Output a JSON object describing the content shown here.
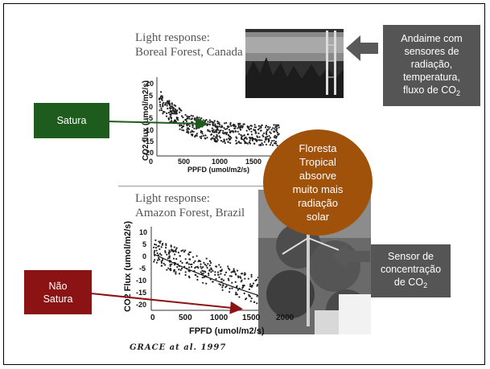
{
  "top_panel": {
    "title_line1": "Light response:",
    "title_line2": "Boreal Forest, Canada",
    "y_axis_label": "CO2 flux (umol/m2/s)",
    "x_axis_label": "PPFD (umol/m2/s)",
    "y_ticks": [
      "10",
      "5",
      "0",
      "-5",
      "-10",
      "-15",
      "-20"
    ],
    "x_ticks": [
      "0",
      "500",
      "1000",
      "1500"
    ]
  },
  "bottom_panel": {
    "title_line1": "Light response:",
    "title_line2": "Amazon Forest, Brazil",
    "y_axis_label": "CO2 Flux (umol/m2/s)",
    "x_axis_label": "FPFD (umol/m2/s)",
    "y_ticks": [
      "10",
      "5",
      "0",
      "-5",
      "-10",
      "-15",
      "-20"
    ],
    "x_ticks": [
      "0",
      "500",
      "1000",
      "1500",
      "2000"
    ]
  },
  "citation": "GRACE at al. 1997",
  "callouts": {
    "satura": "Satura",
    "nao_satura_line1": "Não",
    "nao_satura_line2": "Satura",
    "andaime_line1": "Andaime com",
    "andaime_line2": "sensores de",
    "andaime_line3": "radiação,",
    "andaime_line4": "temperatura,",
    "andaime_line5": "fluxo de CO",
    "andaime_sub": "2",
    "sensor_line1": "Sensor de",
    "sensor_line2": "concentração",
    "sensor_line3": "de CO",
    "sensor_sub": "2",
    "floresta_line1": "Floresta",
    "floresta_line2": "Tropical",
    "floresta_line3": "absorve",
    "floresta_line4": "muito mais",
    "floresta_line5": "radiação",
    "floresta_line6": "solar"
  },
  "colors": {
    "satura_green": "#1e5c1e",
    "nao_satura_red": "#8b1313",
    "callout_gray": "#555555",
    "circle_brown": "#a0520b",
    "arrow_gray": "#595959"
  },
  "icons": {
    "arrow_green": "arrow-right",
    "arrow_red": "arrow-right",
    "arrow_andaime": "block-arrow-left",
    "arrow_sensor": "block-arrow-left"
  }
}
